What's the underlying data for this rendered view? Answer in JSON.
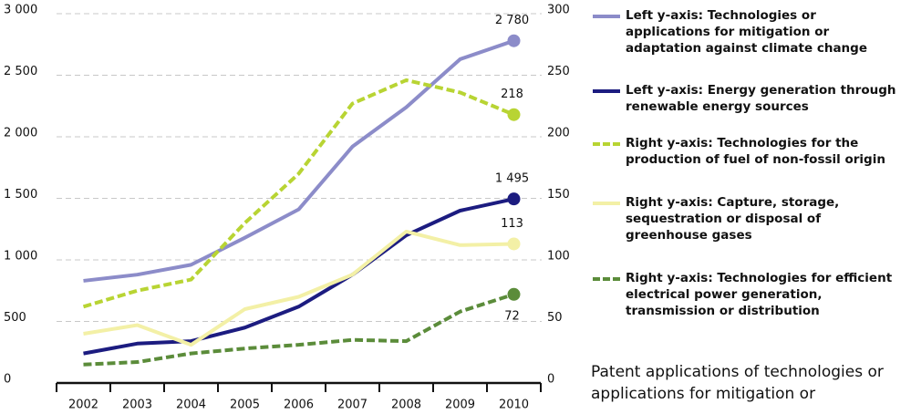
{
  "chart_data": {
    "type": "line",
    "categories": [
      "2002",
      "2003",
      "2004",
      "2005",
      "2006",
      "2007",
      "2008",
      "2009",
      "2010"
    ],
    "ylim": [
      0,
      3000
    ],
    "yticks": [
      0,
      {
        "value": 500,
        "label": "500"
      },
      {
        "value": 1000,
        "label": "1 000"
      },
      {
        "value": 1500,
        "label": "1 500"
      },
      {
        "value": 2000,
        "label": "2 000"
      },
      {
        "value": 2500,
        "label": "2 500"
      },
      {
        "value": 3000,
        "label": "3 000"
      }
    ],
    "y2lim": [
      0,
      300
    ],
    "y2ticks": [
      0,
      50,
      100,
      150,
      200,
      250,
      300
    ],
    "grid": true,
    "series": [
      {
        "name": "Left y-axis: Technologies or applications for mitigation or adaptation against climate change",
        "color": "#8c8cc9",
        "dashed": false,
        "values": [
          830,
          880,
          960,
          1180,
          1410,
          1920,
          2240,
          2630,
          2780
        ],
        "value_labels": [
          null,
          null,
          null,
          null,
          null,
          null,
          null,
          null,
          "2 780"
        ]
      },
      {
        "name": "Left y-axis: Energy generation through renewable energy sources",
        "color": "#1c1c80",
        "dashed": false,
        "values": [
          240,
          320,
          340,
          450,
          620,
          880,
          1200,
          1400,
          1495
        ],
        "value_labels": [
          null,
          null,
          null,
          null,
          null,
          null,
          null,
          null,
          "1 495"
        ]
      },
      {
        "name": "Right y-axis: Technologies for the production of fuel of non-fossil origin",
        "color": "#b8d433",
        "dashed": true,
        "axis": "y2",
        "values": [
          62,
          75,
          84,
          130,
          170,
          227,
          246,
          236,
          218
        ],
        "value_labels": [
          null,
          null,
          null,
          null,
          null,
          null,
          null,
          null,
          "218"
        ]
      },
      {
        "name": "Right y-axis: Capture, storage, sequestration or disposal of greenhouse gases",
        "color": "#f3f0a6",
        "dashed": false,
        "axis": "y2",
        "values": [
          40,
          47,
          31,
          60,
          70,
          88,
          123,
          112,
          113
        ],
        "value_labels": [
          null,
          null,
          null,
          null,
          null,
          null,
          null,
          null,
          "113"
        ]
      },
      {
        "name": "Right y-axis: Technologies for efficient electrical power generation, transmission or distribution",
        "color": "#5b8c3a",
        "dashed": true,
        "axis": "y2",
        "values": [
          15,
          17,
          24,
          28,
          31,
          35,
          34,
          58,
          72
        ],
        "value_labels": [
          null,
          null,
          null,
          null,
          null,
          null,
          null,
          null,
          "72"
        ]
      }
    ],
    "caption": "Patent applications of technologies or applications for mitigation or"
  }
}
